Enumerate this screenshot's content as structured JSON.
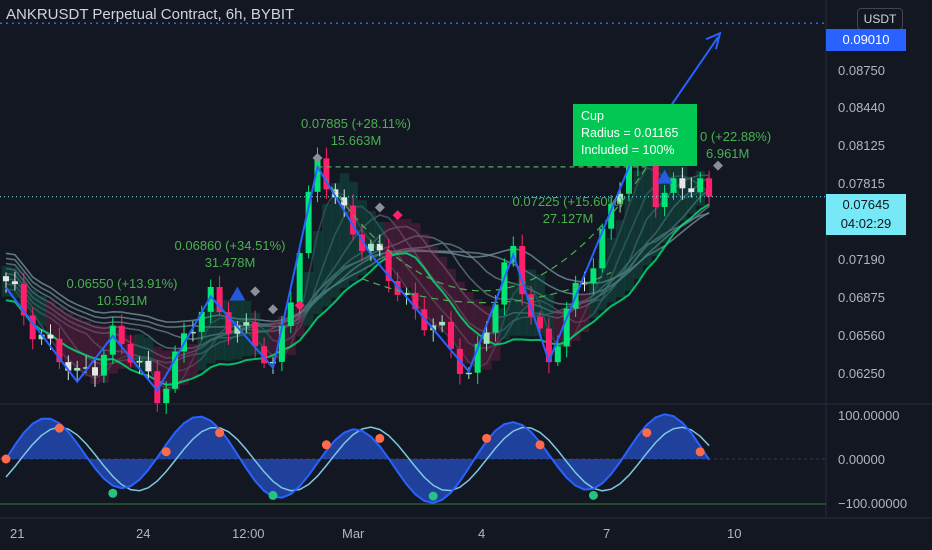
{
  "header": {
    "title": "ANKRUSDT Perpetual Contract, 6h, BYBIT",
    "currency": "USDT"
  },
  "price_axis": {
    "labels": [
      "0.08750",
      "0.08440",
      "0.08125",
      "0.07815",
      "0.07190",
      "0.06875",
      "0.06560",
      "0.06250"
    ],
    "target_price": "0.09010",
    "last_price": "0.07645",
    "countdown": "04:02:29"
  },
  "osc_axis": {
    "labels": [
      "100.00000",
      "0.00000",
      "−100.00000"
    ]
  },
  "time_axis": {
    "labels": [
      "21",
      "24",
      "12:00",
      "Mar",
      "4",
      "7",
      "10"
    ]
  },
  "annotations": {
    "a1_line1": "0.06550 (+13.91%)",
    "a1_line2": "10.591M",
    "a2_line1": "0.06860 (+34.51%)",
    "a2_line2": "31.478M",
    "a3_line1": "0.07885 (+28.11%)",
    "a3_line2": "15.663M",
    "a4_line1": "0.07225 (+15.60%)",
    "a4_line2": "27.127M",
    "a5_line1": "0 (+22.88%)",
    "a5_line2": "6.961M"
  },
  "cup_label": {
    "title": "Cup",
    "radius": "Radius = 0.01165",
    "included": "Included = 100%"
  },
  "colors": {
    "background": "#131722",
    "bull": "#26a69a",
    "bear": "#ef5350",
    "accent_blue": "#2962ff",
    "green": "#4caf50"
  },
  "chart_data": {
    "type": "candlestick",
    "title": "ANKRUSDT Perpetual Contract, 6h, BYBIT",
    "y_range": [
      0.0603,
      0.0913
    ],
    "x_ticks": [
      "21",
      "24",
      "12:00",
      "Mar",
      "4",
      "7",
      "10"
    ],
    "zigzag": [
      {
        "x": 0,
        "y": 0.0693
      },
      {
        "x": 8,
        "y": 0.0619
      },
      {
        "x": 12,
        "y": 0.0655
      },
      {
        "x": 17,
        "y": 0.0612
      },
      {
        "x": 23,
        "y": 0.0686
      },
      {
        "x": 30,
        "y": 0.063
      },
      {
        "x": 35,
        "y": 0.0788
      },
      {
        "x": 41,
        "y": 0.0719
      },
      {
        "x": 52,
        "y": 0.0627
      },
      {
        "x": 57,
        "y": 0.0719
      },
      {
        "x": 61,
        "y": 0.0635
      },
      {
        "x": 70,
        "y": 0.0788
      },
      {
        "x": 80,
        "y": 0.089
      }
    ],
    "cup": {
      "left": 0.0788,
      "bottom": 0.0648,
      "right": 0.0788
    },
    "osc_range": [
      -100,
      100
    ],
    "last_price": 0.07645,
    "target_price": 0.0901
  }
}
